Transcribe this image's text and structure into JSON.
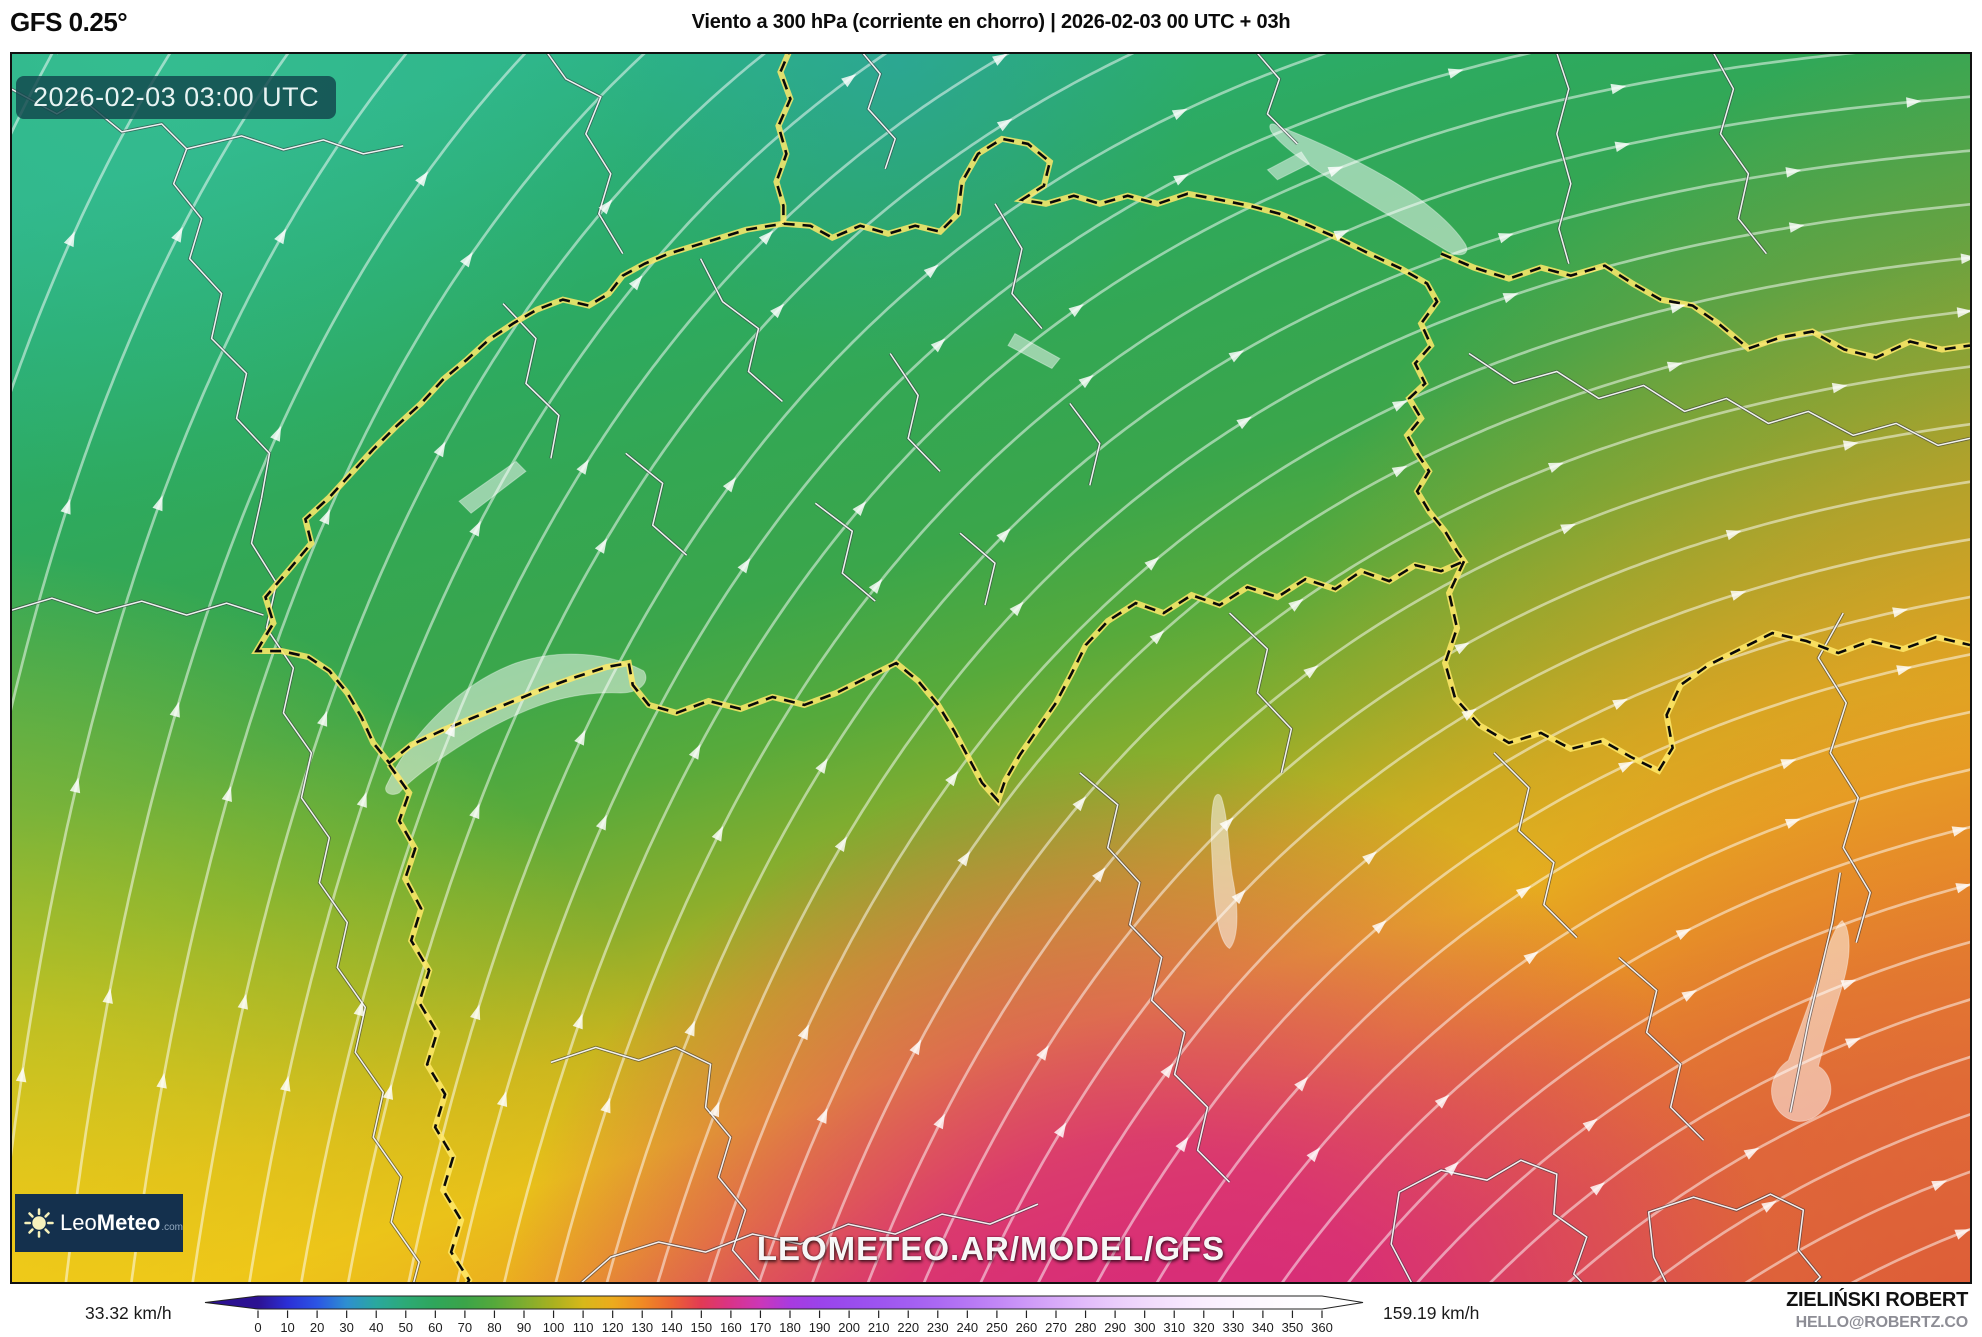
{
  "header": {
    "model_label": "GFS 0.25°",
    "title": "Viento a 300 hPa (corriente en chorro) | 2026-02-03 00 UTC + 03h"
  },
  "map": {
    "timestamp": "2026-02-03 03:00 UTC",
    "watermark": "LEOMETEO.AR/MODEL/GFS",
    "logo": {
      "word_light": "Leo",
      "word_bold": "Meteo",
      "tld": ".com"
    }
  },
  "footer": {
    "min_speed": "33.32 km/h",
    "max_speed": "159.19 km/h",
    "credit_name": "ZIELIŃSKI ROBERT",
    "credit_contact": "HELLO@ROBERTZ.CO"
  },
  "colorbar": {
    "unit": "km/h",
    "ticks": [
      0,
      10,
      20,
      30,
      40,
      50,
      60,
      70,
      80,
      90,
      100,
      110,
      120,
      130,
      140,
      150,
      160,
      170,
      180,
      190,
      200,
      210,
      220,
      230,
      240,
      250,
      260,
      270,
      280,
      290,
      300,
      310,
      320,
      330,
      340,
      350,
      360
    ],
    "stops": [
      {
        "v": 0,
        "c": "#2c1192"
      },
      {
        "v": 10,
        "c": "#2b2fd6"
      },
      {
        "v": 20,
        "c": "#2b55e4"
      },
      {
        "v": 30,
        "c": "#2e8fd0"
      },
      {
        "v": 40,
        "c": "#2aa89e"
      },
      {
        "v": 50,
        "c": "#2caa76"
      },
      {
        "v": 60,
        "c": "#2fa65a"
      },
      {
        "v": 70,
        "c": "#3ba449"
      },
      {
        "v": 80,
        "c": "#55a93b"
      },
      {
        "v": 90,
        "c": "#7ead2f"
      },
      {
        "v": 100,
        "c": "#aab120"
      },
      {
        "v": 110,
        "c": "#d7b81a"
      },
      {
        "v": 120,
        "c": "#ecab1d"
      },
      {
        "v": 130,
        "c": "#f08a24"
      },
      {
        "v": 140,
        "c": "#ec6333"
      },
      {
        "v": 150,
        "c": "#e23a55"
      },
      {
        "v": 160,
        "c": "#d93389"
      },
      {
        "v": 170,
        "c": "#cb37b8"
      },
      {
        "v": 180,
        "c": "#a83ae0"
      },
      {
        "v": 190,
        "c": "#9b43ea"
      },
      {
        "v": 200,
        "c": "#9a4cee"
      },
      {
        "v": 210,
        "c": "#9d54f0"
      },
      {
        "v": 220,
        "c": "#a35ef1"
      },
      {
        "v": 230,
        "c": "#ab69f3"
      },
      {
        "v": 240,
        "c": "#b677f4"
      },
      {
        "v": 250,
        "c": "#c187f6"
      },
      {
        "v": 260,
        "c": "#cd99f8"
      },
      {
        "v": 270,
        "c": "#d8aaf9"
      },
      {
        "v": 280,
        "c": "#e2bcfa"
      },
      {
        "v": 290,
        "c": "#eaccfb"
      },
      {
        "v": 300,
        "c": "#f0d9fc"
      },
      {
        "v": 310,
        "c": "#f5e4fd"
      },
      {
        "v": 320,
        "c": "#f9edfd"
      },
      {
        "v": 330,
        "c": "#fbf3fe"
      },
      {
        "v": 340,
        "c": "#fdf8fe"
      },
      {
        "v": 350,
        "c": "#fefcff"
      },
      {
        "v": 360,
        "c": "#ffffff"
      }
    ]
  }
}
